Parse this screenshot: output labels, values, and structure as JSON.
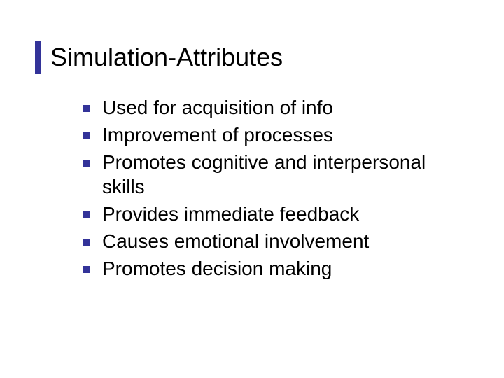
{
  "slide": {
    "title": "Simulation-Attributes",
    "title_fontsize": 36,
    "title_color": "#000000",
    "title_bar_color": "#333399",
    "background_color": "#ffffff",
    "bullet_marker_color": "#333399",
    "bullet_fontsize": 28,
    "bullet_text_color": "#000000",
    "bullets": [
      "Used for acquisition of info",
      "Improvement of processes",
      "Promotes cognitive and interpersonal skills",
      "Provides  immediate feedback",
      "Causes emotional involvement",
      "Promotes decision making"
    ]
  }
}
